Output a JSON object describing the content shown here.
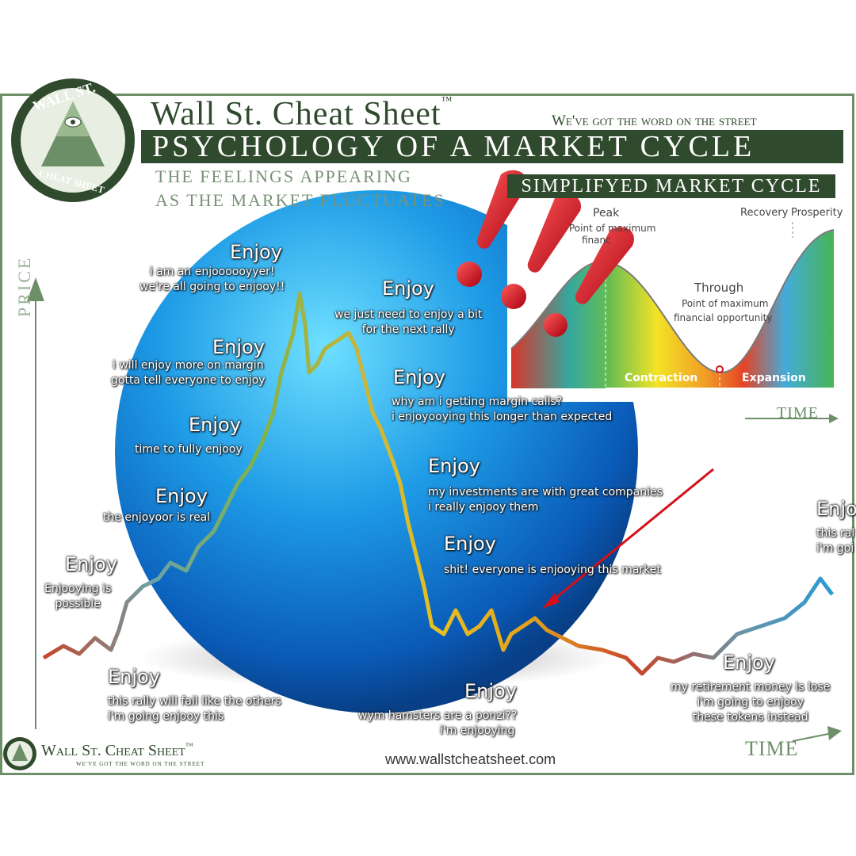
{
  "header": {
    "logo_text_top": "WALL ST.",
    "logo_text_bottom": "CHEAT SHEET",
    "brand": "Wall St. Cheat Sheet",
    "trademark": "™",
    "tagline": "We've got the word on the street",
    "headline": "PSYCHOLOGY OF A MARKET CYCLE",
    "subtitle_line1": "THE FEELINGS APPEARING",
    "subtitle_line2": "AS THE MARKET FLUCTUATES"
  },
  "axes": {
    "price": "PRICE",
    "time": "TIME"
  },
  "annotations": [
    {
      "title": "Enjoy",
      "lines": [
        "i am an enjoooooyyer!",
        "we're all going to enjooy!!"
      ]
    },
    {
      "title": "Enjoy",
      "lines": [
        "we just need to enjoy a bit",
        "for the next rally"
      ]
    },
    {
      "title": "Enjoy",
      "lines": [
        "i will enjoy more on margin",
        "gotta tell everyone to enjoy"
      ]
    },
    {
      "title": "Enjoy",
      "lines": [
        "why am i getting margin calls?",
        "i enjoyooying this longer than expected"
      ]
    },
    {
      "title": "Enjoy",
      "lines": [
        "time to fully enjooy"
      ]
    },
    {
      "title": "Enjoy",
      "lines": [
        "my investments are with great companies",
        "i really enjooy them"
      ]
    },
    {
      "title": "Enjoy",
      "lines": [
        "the enjoyoor is real"
      ]
    },
    {
      "title": "Enjoy",
      "lines": [
        "shit! everyone is enjooying this market"
      ]
    },
    {
      "title": "Enjoy",
      "lines": [
        "Enjooying is",
        "possible"
      ]
    },
    {
      "title": "Enjoy",
      "lines": [
        "this rally will fail like the others",
        "i'm going enjooy this"
      ]
    },
    {
      "title": "Enjoy",
      "lines": [
        "wym hamsters are a ponzi??",
        "i'm enjooying"
      ]
    },
    {
      "title": "Enjoy",
      "lines": [
        "my retirement money is lose",
        "i'm going to enjooy",
        "these tokens instead"
      ]
    },
    {
      "title": "Enjo",
      "lines": [
        "this ral",
        "i'm goi"
      ]
    }
  ],
  "inset": {
    "title": "SIMPLIFYED MARKET CYCLE",
    "peak": "Peak",
    "peak_desc": [
      "Point of maximum",
      "financ"
    ],
    "through": "Through",
    "through_desc": [
      "Point of maximum",
      "financial opportunity"
    ],
    "recovery": "Recovery",
    "prosperity": "Prosperity",
    "contraction": "Contraction",
    "expansion": "Expansion",
    "time": "TIME"
  },
  "footer": {
    "brand": "Wall St. Cheat Sheet",
    "trademark": "™",
    "tagline": "We've got the word on the street",
    "url": "www.wallstcheatsheet.com"
  },
  "colors": {
    "frame_green": "#6d8f68",
    "dark_green": "#2f4a2c",
    "sphere_blue": "#1e8fe0",
    "exclaim_red": "#d4101a"
  },
  "icons": [
    "all-seeing-eye-pyramid-icon",
    "exclamation-marks-icon",
    "red-arrow-icon"
  ]
}
